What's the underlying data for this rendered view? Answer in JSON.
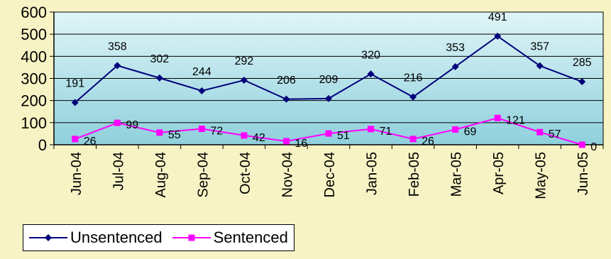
{
  "chart_data": {
    "type": "line",
    "categories": [
      "Jun-04",
      "Jul-04",
      "Aug-04",
      "Sep-04",
      "Oct-04",
      "Nov-04",
      "Dec-04",
      "Jan-05",
      "Feb-05",
      "Mar-05",
      "Apr-05",
      "May-05",
      "Jun-05"
    ],
    "series": [
      {
        "name": "Unsentenced",
        "color": "#00007a",
        "marker": "diamond",
        "values": [
          191,
          358,
          302,
          244,
          292,
          206,
          209,
          320,
          216,
          353,
          491,
          357,
          285
        ]
      },
      {
        "name": "Sentenced",
        "color": "#ff00ff",
        "marker": "square",
        "values": [
          26,
          99,
          55,
          72,
          42,
          16,
          51,
          71,
          26,
          69,
          121,
          57,
          0
        ]
      }
    ],
    "title": "",
    "xlabel": "",
    "ylabel": "",
    "ylim": [
      0,
      600
    ],
    "yticks": [
      0,
      100,
      200,
      300,
      400,
      500,
      600
    ],
    "grid": true,
    "legend_position": "bottom-left",
    "plot_gradient": [
      "#dff5f8",
      "#8fd0dc"
    ]
  }
}
